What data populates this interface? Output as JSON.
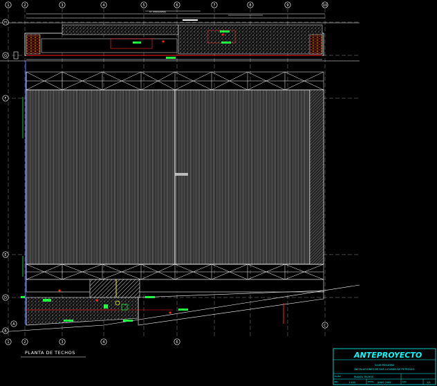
{
  "drawing": {
    "title": "PLANTA DE TECHOS",
    "top_note": "ST. MIRAGOMAS"
  },
  "grid": {
    "columns": [
      "1",
      "2",
      "3",
      "4",
      "5",
      "6",
      "7",
      "8",
      "9",
      "10"
    ],
    "rows": [
      "H",
      "G",
      "F",
      "E",
      "D",
      "C",
      "B",
      "A"
    ]
  },
  "title_block": {
    "heading": "ANTEPROYECTO",
    "project_line1": "CLUB REGATAS",
    "project_line2": "INSTALACIONES DE GAS LICUADO DE PETROLEO",
    "plan_label": "PLANO",
    "plan_name": "PLANTA TECHOS",
    "scale_label": "ESC.",
    "scale": "1:100",
    "date_label": "FECHA",
    "date": "JUNIO 2005",
    "sheet_label": "LAM.",
    "sheet": "1/1"
  },
  "colors": {
    "background": "#000000",
    "lines": "#ffffff",
    "grid_axis": "#aaaaaa",
    "pipe_red": "#ff2020",
    "pipe_blue": "#4060ff",
    "label_green": "#20ff40",
    "label_yellow": "#ffff00",
    "title_block": "#00ffff"
  }
}
